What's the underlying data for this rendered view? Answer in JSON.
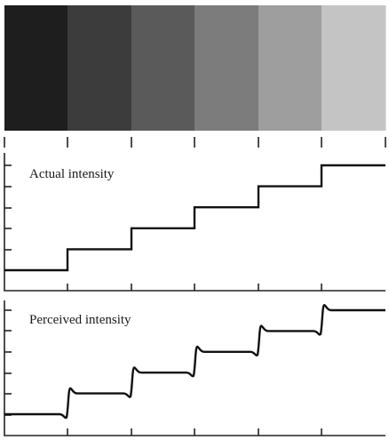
{
  "gradient_bands": {
    "colors": [
      "#1e1e1e",
      "#3c3c3c",
      "#5a5a5a",
      "#7c7c7c",
      "#9e9e9e",
      "#c4c4c4"
    ]
  },
  "actual_panel": {
    "label": "Actual intensity",
    "steps": [
      0,
      1,
      2,
      3,
      4,
      5
    ]
  },
  "perceived_panel": {
    "label": "Perceived intensity",
    "steps": [
      0,
      1,
      2,
      3,
      4,
      5
    ],
    "overshoot": 0.45
  }
}
